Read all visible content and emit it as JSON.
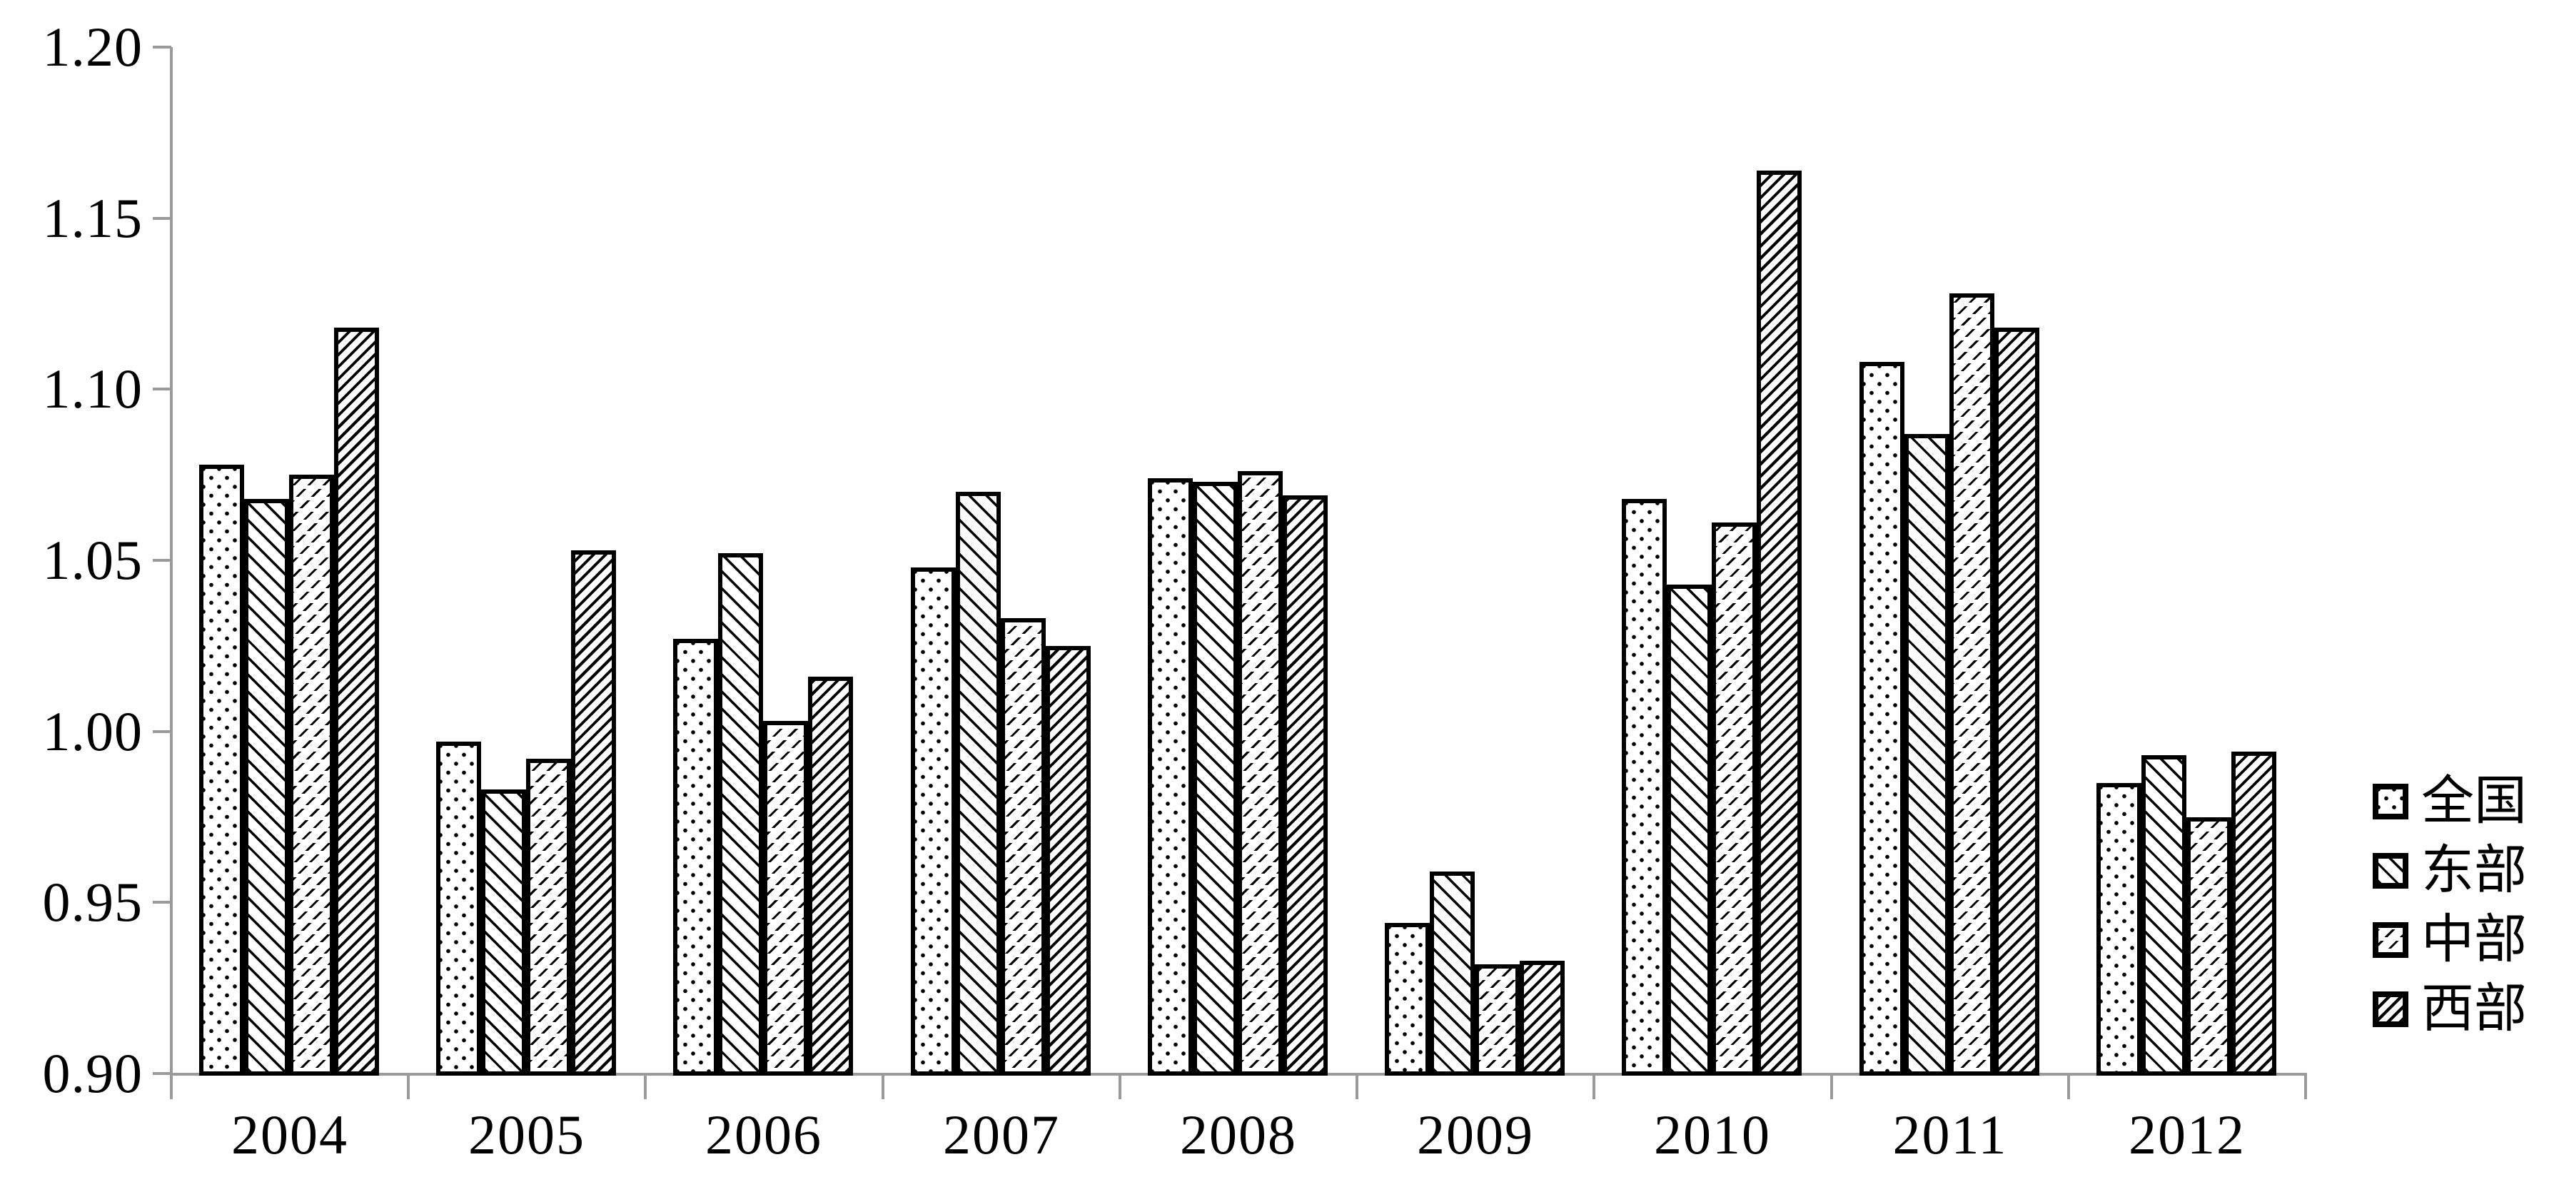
{
  "chart_data": {
    "type": "bar",
    "title": "",
    "xlabel": "",
    "ylabel": "",
    "categories": [
      "2004",
      "2005",
      "2006",
      "2007",
      "2008",
      "2009",
      "2010",
      "2011",
      "2012"
    ],
    "series": [
      {
        "name": "全国",
        "key": "national",
        "pattern": "dots",
        "pattern_description": "dotted",
        "values": [
          1.078,
          0.997,
          1.027,
          1.048,
          1.074,
          0.944,
          1.068,
          1.108,
          0.985
        ]
      },
      {
        "name": "东部",
        "key": "east",
        "pattern": "diag-up",
        "pattern_description": "light upward diagonal hatch",
        "values": [
          1.068,
          0.983,
          1.052,
          1.07,
          1.073,
          0.959,
          1.043,
          1.087,
          0.993
        ]
      },
      {
        "name": "中部",
        "key": "central",
        "pattern": "dash-down",
        "pattern_description": "dashed downward diagonal hatch",
        "values": [
          1.075,
          0.992,
          1.003,
          1.033,
          1.076,
          0.932,
          1.061,
          1.128,
          0.975
        ]
      },
      {
        "name": "西部",
        "key": "west",
        "pattern": "diag-down",
        "pattern_description": "dense downward diagonal hatch",
        "values": [
          1.118,
          1.053,
          1.016,
          1.025,
          1.069,
          0.933,
          1.164,
          1.118,
          0.994
        ]
      }
    ],
    "ylim": [
      0.9,
      1.2
    ],
    "ytick_step": 0.05,
    "ytick_labels": [
      "1.20",
      "1.15",
      "1.10",
      "1.05",
      "1.00",
      "0.95",
      "0.90"
    ],
    "grid": false,
    "legend_position": "right"
  },
  "colors": {
    "foreground": "#000000",
    "axis": "#9a9a9a",
    "background": "#ffffff"
  }
}
